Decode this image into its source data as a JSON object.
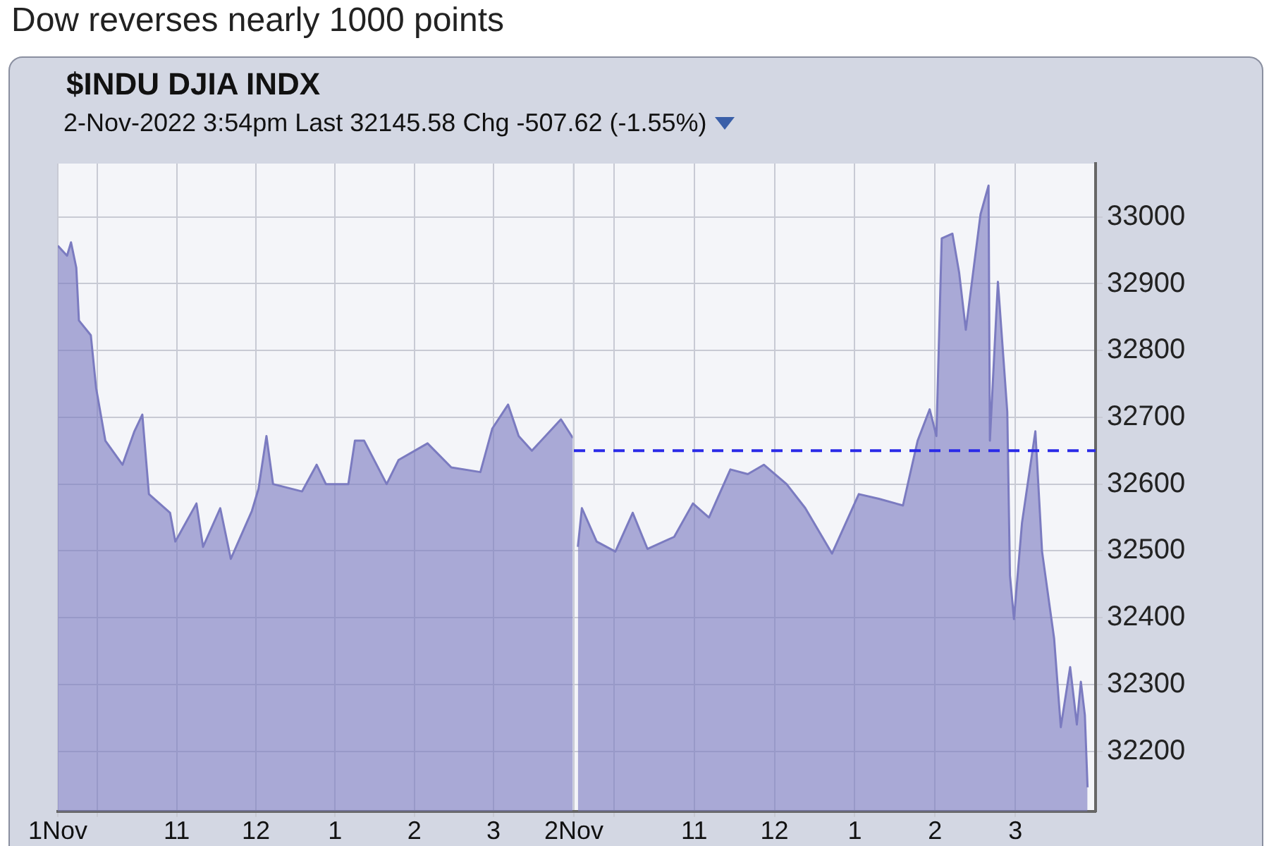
{
  "chart_data": [
    {
      "type": "area",
      "title": "Dow reverses nearly 1000 points",
      "subtitle": "$INDU DJIA INDX",
      "annotations": [
        "2-Nov-2022 3:54pm Last 32145.58 Chg -507.62 (-1.55%)"
      ],
      "x": [
        "2022-11-01T09:30",
        "2022-11-01T09:37",
        "2022-11-01T09:40",
        "2022-11-01T09:44",
        "2022-11-01T09:46",
        "2022-11-01T09:55",
        "2022-11-01T09:59",
        "2022-11-01T10:06",
        "2022-11-01T10:19",
        "2022-11-01T10:28",
        "2022-11-01T10:34",
        "2022-11-01T10:39",
        "2022-11-01T10:55",
        "2022-11-01T10:59",
        "2022-11-01T11:15",
        "2022-11-01T11:20",
        "2022-11-01T11:33",
        "2022-11-01T11:41",
        "2022-11-01T11:57",
        "2022-11-01T12:02",
        "2022-11-01T12:08",
        "2022-11-01T12:13",
        "2022-11-01T12:35",
        "2022-11-01T12:46",
        "2022-11-01T12:53",
        "2022-11-01T13:10",
        "2022-11-01T13:15",
        "2022-11-01T13:22",
        "2022-11-01T13:39",
        "2022-11-01T13:48",
        "2022-11-01T14:10",
        "2022-11-01T14:28",
        "2022-11-01T14:50",
        "2022-11-01T14:59",
        "2022-11-01T15:11",
        "2022-11-01T15:19",
        "2022-11-01T15:29",
        "2022-11-01T15:51",
        "2022-11-01T16:00"
      ],
      "series": [
        {
          "color": "#7b7bc0",
          "values": [
            32957,
            32942,
            32962,
            32924,
            32845,
            32823,
            32744,
            32665,
            32629,
            32679,
            32704,
            32585,
            32557,
            32514,
            32571,
            32506,
            32564,
            32488,
            32560,
            32593,
            32672,
            32600,
            32589,
            32629,
            32600,
            32600,
            32665,
            32665,
            32600,
            32636,
            32661,
            32625,
            32618,
            32683,
            32719,
            32672,
            32650,
            32697,
            32669
          ]
        }
      ],
      "xlim": [
        "2022-11-01T09:30",
        "2022-11-01T16:00"
      ],
      "xticks": [
        {
          "value": "2022-11-01T09:30",
          "label": "1Nov"
        },
        {
          "value": "2022-11-01T10:00",
          "label": null
        },
        {
          "value": "2022-11-01T11:00",
          "label": "11"
        },
        {
          "value": "2022-11-01T12:00",
          "label": "12"
        },
        {
          "value": "2022-11-01T13:00",
          "label": "1"
        },
        {
          "value": "2022-11-01T14:00",
          "label": "2"
        },
        {
          "value": "2022-11-01T15:00",
          "label": "3"
        }
      ],
      "ylim": [
        32110,
        33080
      ],
      "yticks": [
        32200,
        32300,
        32400,
        32500,
        32600,
        32700,
        32800,
        32900,
        33000
      ],
      "grid": true,
      "tick_labels": "x"
    },
    {
      "type": "area",
      "x": [
        "2022-11-02T09:33",
        "2022-11-02T09:36",
        "2022-11-02T09:47",
        "2022-11-02T10:01",
        "2022-11-02T10:14",
        "2022-11-02T10:25",
        "2022-11-02T10:45",
        "2022-11-02T10:59",
        "2022-11-02T11:11",
        "2022-11-02T11:27",
        "2022-11-02T11:40",
        "2022-11-02T11:52",
        "2022-11-02T12:09",
        "2022-11-02T12:23",
        "2022-11-02T12:43",
        "2022-11-02T13:03",
        "2022-11-02T13:18",
        "2022-11-02T13:36",
        "2022-11-02T13:47",
        "2022-11-02T13:56",
        "2022-11-02T14:01",
        "2022-11-02T14:05",
        "2022-11-02T14:13",
        "2022-11-02T14:18",
        "2022-11-02T14:23",
        "2022-11-02T14:34",
        "2022-11-02T14:40",
        "2022-11-02T14:41",
        "2022-11-02T14:47",
        "2022-11-02T14:54",
        "2022-11-02T14:56",
        "2022-11-02T14:59",
        "2022-11-02T15:05",
        "2022-11-02T15:15",
        "2022-11-02T15:20",
        "2022-11-02T15:29",
        "2022-11-02T15:34",
        "2022-11-02T15:41",
        "2022-11-02T15:46",
        "2022-11-02T15:49",
        "2022-11-02T15:52",
        "2022-11-02T15:54"
      ],
      "series": [
        {
          "color": "#7b7bc0",
          "values": [
            32506,
            32564,
            32514,
            32499,
            32557,
            32503,
            32521,
            32571,
            32550,
            32622,
            32615,
            32629,
            32600,
            32564,
            32496,
            32585,
            32578,
            32568,
            32665,
            32712,
            32672,
            32968,
            32975,
            32917,
            32831,
            33004,
            33047,
            32665,
            32903,
            32708,
            32463,
            32398,
            32542,
            32679,
            32499,
            32369,
            32236,
            32326,
            32240,
            32304,
            32254,
            32146
          ]
        }
      ],
      "xlim": [
        "2022-11-02T09:30",
        "2022-11-02T16:00"
      ],
      "xticks": [
        {
          "value": "2022-11-02T09:30",
          "label": "2Nov"
        },
        {
          "value": "2022-11-02T10:00",
          "label": null
        },
        {
          "value": "2022-11-02T11:00",
          "label": "11"
        },
        {
          "value": "2022-11-02T12:00",
          "label": "12"
        },
        {
          "value": "2022-11-02T13:00",
          "label": "1"
        },
        {
          "value": "2022-11-02T14:00",
          "label": "2"
        },
        {
          "value": "2022-11-02T15:00",
          "label": "3"
        }
      ],
      "ylim": [
        32110,
        33080
      ],
      "yticks": [
        32200,
        32300,
        32400,
        32500,
        32600,
        32700,
        32800,
        32900,
        33000
      ],
      "ref_lines": [
        {
          "axis": "y",
          "value": 32650,
          "color": "#2a2ae8",
          "line_style": "dashed"
        }
      ],
      "grid": true
    }
  ]
}
